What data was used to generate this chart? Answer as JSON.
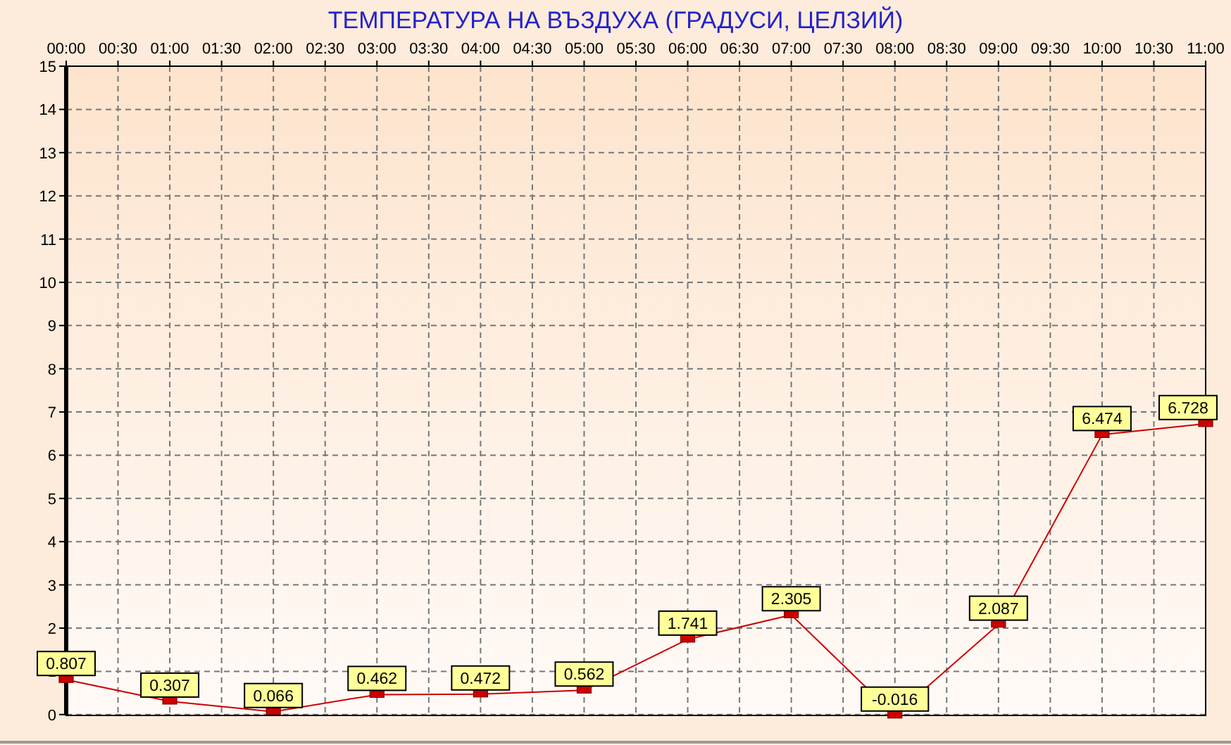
{
  "chart_data": {
    "type": "line",
    "title": "ТЕМПЕРАТУРА НА ВЪЗДУХА  (ГРАДУСИ, ЦЕЛЗИЙ)",
    "x": [
      0,
      1,
      2,
      3,
      4,
      5,
      6,
      7,
      8,
      9,
      10,
      11
    ],
    "series": [
      {
        "color": "#cc0000",
        "values": [
          0.807,
          0.307,
          0.066,
          0.462,
          0.472,
          0.562,
          1.741,
          2.305,
          -0.016,
          2.087,
          6.474,
          6.728
        ]
      }
    ],
    "xlim": [
      0,
      11
    ],
    "xticks": [
      {
        "value": 0,
        "label": "00:00"
      },
      {
        "value": 0.5,
        "label": "00:30"
      },
      {
        "value": 1,
        "label": "01:00"
      },
      {
        "value": 1.5,
        "label": "01:30"
      },
      {
        "value": 2,
        "label": "02:00"
      },
      {
        "value": 2.5,
        "label": "02:30"
      },
      {
        "value": 3,
        "label": "03:00"
      },
      {
        "value": 3.5,
        "label": "03:30"
      },
      {
        "value": 4,
        "label": "04:00"
      },
      {
        "value": 4.5,
        "label": "04:30"
      },
      {
        "value": 5,
        "label": "05:00"
      },
      {
        "value": 5.5,
        "label": "05:30"
      },
      {
        "value": 6,
        "label": "06:00"
      },
      {
        "value": 6.5,
        "label": "06:30"
      },
      {
        "value": 7,
        "label": "07:00"
      },
      {
        "value": 7.5,
        "label": "07:30"
      },
      {
        "value": 8,
        "label": "08:00"
      },
      {
        "value": 8.5,
        "label": "08:30"
      },
      {
        "value": 9,
        "label": "09:00"
      },
      {
        "value": 9.5,
        "label": "09:30"
      },
      {
        "value": 10,
        "label": "10:00"
      },
      {
        "value": 10.5,
        "label": "10:30"
      },
      {
        "value": 11,
        "label": "11:00"
      }
    ],
    "ylim": [
      -0.02,
      15
    ],
    "yticks": [
      0,
      1,
      2,
      3,
      4,
      5,
      6,
      7,
      8,
      9,
      10,
      11,
      12,
      13,
      14,
      15
    ],
    "grid": true,
    "marker": "square",
    "line_style": "solid",
    "data_labels": true
  }
}
